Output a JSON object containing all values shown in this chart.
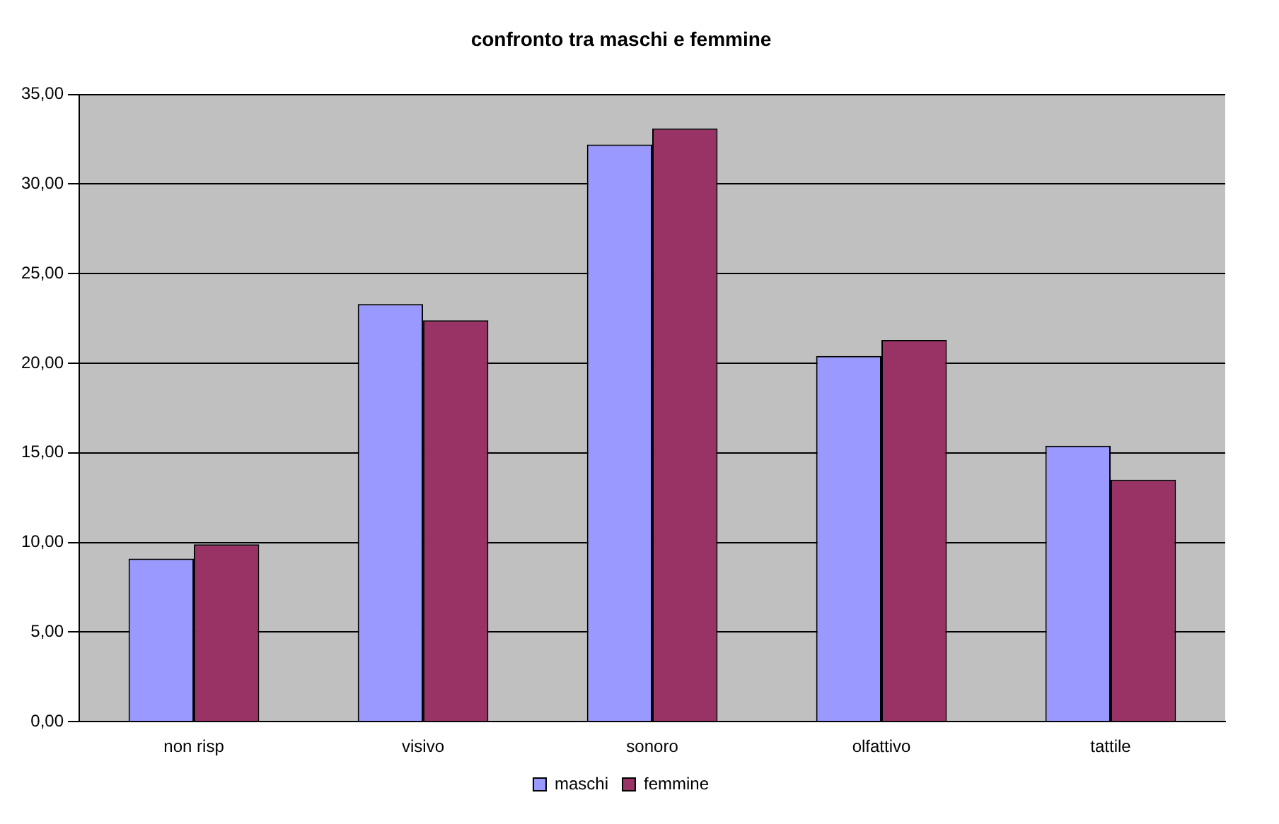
{
  "chart_data": {
    "type": "bar",
    "title": "confronto tra maschi e femmine",
    "categories": [
      "non risp",
      "visivo",
      "sonoro",
      "olfattivo",
      "tattile"
    ],
    "series": [
      {
        "name": "maschi",
        "color": "#9999ff",
        "values": [
          9.1,
          23.3,
          32.2,
          20.4,
          15.4
        ]
      },
      {
        "name": "femmine",
        "color": "#993366",
        "values": [
          9.9,
          22.4,
          33.1,
          21.3,
          13.5
        ]
      }
    ],
    "ylim": [
      0,
      35
    ],
    "yticks": [
      {
        "value": 0,
        "label": "0,00"
      },
      {
        "value": 5,
        "label": "5,00"
      },
      {
        "value": 10,
        "label": "10,00"
      },
      {
        "value": 15,
        "label": "15,00"
      },
      {
        "value": 20,
        "label": "20,00"
      },
      {
        "value": 25,
        "label": "25,00"
      },
      {
        "value": 30,
        "label": "30,00"
      },
      {
        "value": 35,
        "label": "35,00"
      }
    ],
    "grid": "y",
    "legend": "bottom"
  }
}
